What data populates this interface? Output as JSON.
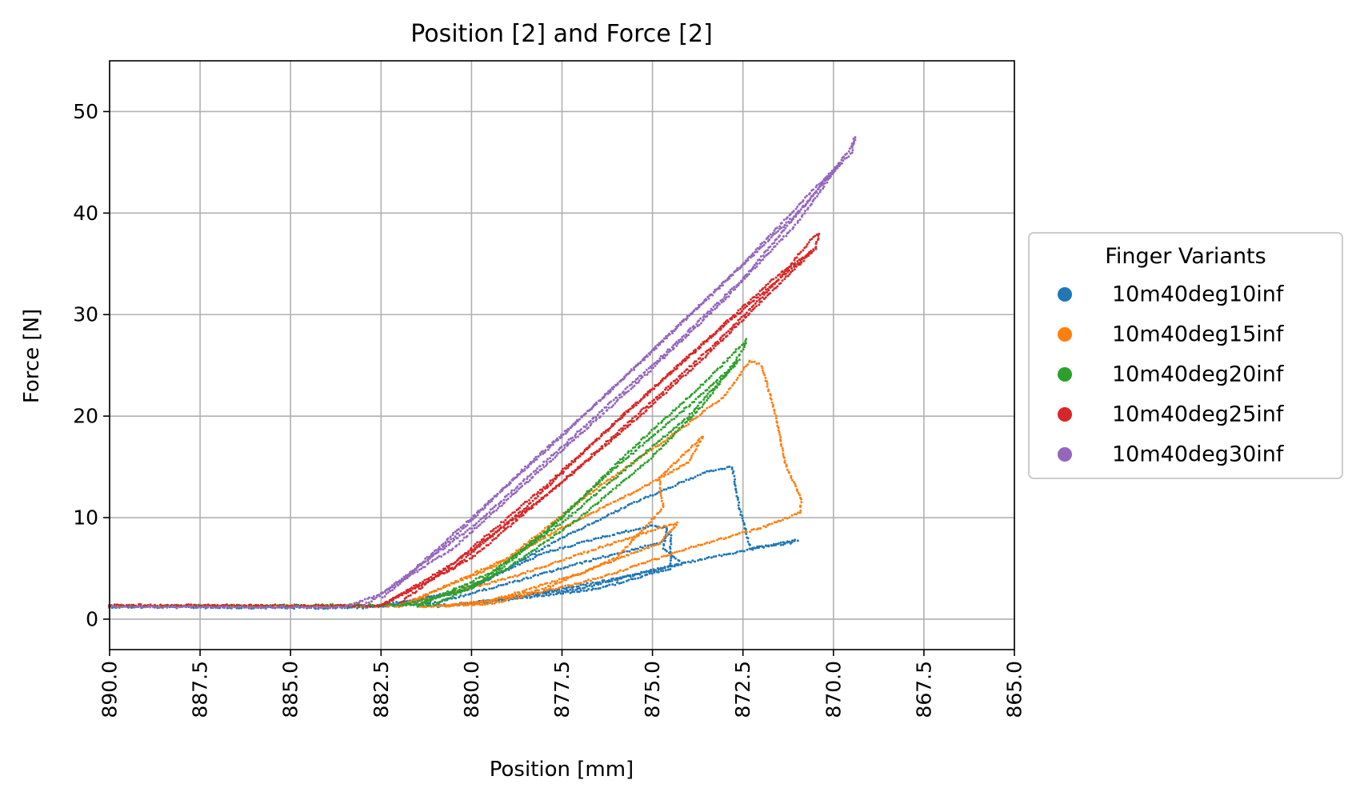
{
  "chart_data": {
    "type": "scatter",
    "title": "Position [2] and Force [2]",
    "xlabel": "Position [mm]",
    "ylabel": "Force [N]",
    "xlim": [
      890.0,
      865.0
    ],
    "ylim": [
      -3,
      55
    ],
    "x_ticks": [
      890.0,
      887.5,
      885.0,
      882.5,
      880.0,
      877.5,
      875.0,
      872.5,
      870.0,
      867.5,
      865.0
    ],
    "x_tick_labels": [
      "890.0",
      "887.5",
      "885.0",
      "882.5",
      "880.0",
      "877.5",
      "875.0",
      "872.5",
      "870.0",
      "867.5",
      "865.0"
    ],
    "y_ticks": [
      0,
      10,
      20,
      30,
      40,
      50
    ],
    "y_tick_labels": [
      "0",
      "10",
      "20",
      "30",
      "40",
      "50"
    ],
    "grid": true,
    "legend": {
      "title": "Finger Variants",
      "placement": "outside-right"
    },
    "series": [
      {
        "name": "10m40deg10inf",
        "color": "#1f77b4",
        "cycles": [
          {
            "load": [
              [
                890.0,
                1.2
              ],
              [
                883.5,
                1.1
              ],
              [
                881.0,
                1.6
              ],
              [
                879.0,
                3.5
              ],
              [
                876.5,
                6.0
              ],
              [
                874.8,
                7.5
              ],
              [
                874.5,
                8.5
              ]
            ],
            "unload": [
              [
                874.5,
                8.5
              ],
              [
                874.5,
                5.0
              ],
              [
                876.5,
                3.0
              ],
              [
                879.5,
                1.7
              ],
              [
                881.5,
                1.2
              ]
            ]
          },
          {
            "load": [
              [
                883.0,
                1.1
              ],
              [
                880.5,
                2.5
              ],
              [
                878.0,
                6.5
              ],
              [
                876.5,
                8.0
              ],
              [
                875.0,
                9.2
              ],
              [
                874.6,
                9.0
              ]
            ],
            "unload": [
              [
                874.6,
                9.0
              ],
              [
                874.7,
                7.0
              ],
              [
                874.2,
                5.5
              ],
              [
                877.0,
                3.0
              ],
              [
                880.0,
                1.6
              ]
            ]
          },
          {
            "load": [
              [
                882.5,
                1.2
              ],
              [
                880.0,
                3.0
              ],
              [
                877.5,
                8.0
              ],
              [
                875.5,
                11.5
              ],
              [
                874.5,
                13.0
              ],
              [
                873.5,
                14.5
              ],
              [
                872.8,
                15.0
              ]
            ],
            "unload": [
              [
                872.8,
                15.0
              ],
              [
                872.6,
                11.0
              ],
              [
                872.3,
                7.0
              ],
              [
                871.2,
                7.5
              ],
              [
                871.0,
                7.8
              ],
              [
                873.5,
                6.0
              ],
              [
                876.0,
                4.0
              ],
              [
                879.0,
                2.0
              ],
              [
                881.0,
                1.2
              ]
            ]
          }
        ]
      },
      {
        "name": "10m40deg15inf",
        "color": "#ff7f0e",
        "cycles": [
          {
            "load": [
              [
                890.0,
                1.3
              ],
              [
                882.0,
                1.3
              ],
              [
                879.0,
                4.0
              ],
              [
                876.5,
                7.0
              ],
              [
                874.8,
                9.0
              ],
              [
                874.3,
                9.5
              ]
            ],
            "unload": [
              [
                874.3,
                9.5
              ],
              [
                874.8,
                7.5
              ],
              [
                877.0,
                4.5
              ],
              [
                879.5,
                1.8
              ],
              [
                881.0,
                1.3
              ]
            ]
          },
          {
            "load": [
              [
                882.0,
                1.3
              ],
              [
                879.5,
                5.0
              ],
              [
                877.5,
                9.0
              ],
              [
                875.5,
                12.5
              ],
              [
                874.0,
                15.5
              ],
              [
                873.6,
                18.0
              ]
            ],
            "unload": [
              [
                873.6,
                18.0
              ],
              [
                874.8,
                14.0
              ],
              [
                874.8,
                13.0
              ],
              [
                874.7,
                11.0
              ],
              [
                876.0,
                6.0
              ],
              [
                878.0,
                3.0
              ],
              [
                880.0,
                1.4
              ]
            ]
          },
          {
            "load": [
              [
                882.0,
                1.2
              ],
              [
                879.0,
                6.0
              ],
              [
                876.5,
                13.0
              ],
              [
                874.5,
                18.0
              ],
              [
                873.0,
                22.0
              ],
              [
                872.3,
                25.5
              ],
              [
                872.0,
                25.0
              ],
              [
                871.9,
                24.0
              ]
            ],
            "unload": [
              [
                871.9,
                24.0
              ],
              [
                871.6,
                20.0
              ],
              [
                871.3,
                15.0
              ],
              [
                870.9,
                12.0
              ],
              [
                870.9,
                10.5
              ],
              [
                872.0,
                9.0
              ],
              [
                874.0,
                7.0
              ],
              [
                876.5,
                4.0
              ],
              [
                879.5,
                1.5
              ],
              [
                881.5,
                1.2
              ]
            ]
          }
        ]
      },
      {
        "name": "10m40deg20inf",
        "color": "#2ca02c",
        "cycles": [
          {
            "load": [
              [
                890.0,
                1.3
              ],
              [
                881.0,
                1.4
              ],
              [
                879.0,
                5.0
              ],
              [
                877.0,
                10.0
              ],
              [
                875.0,
                16.0
              ],
              [
                873.5,
                21.5
              ],
              [
                872.5,
                26.5
              ],
              [
                872.4,
                27.5
              ]
            ],
            "unload": [
              [
                872.4,
                27.5
              ],
              [
                873.5,
                23.5
              ],
              [
                875.5,
                17.0
              ],
              [
                877.5,
                10.0
              ],
              [
                879.5,
                4.0
              ],
              [
                881.5,
                1.4
              ]
            ]
          },
          {
            "load": [
              [
                881.5,
                1.3
              ],
              [
                879.5,
                4.5
              ],
              [
                877.5,
                9.5
              ],
              [
                875.5,
                15.5
              ],
              [
                874.0,
                20.0
              ],
              [
                872.6,
                25.5
              ]
            ],
            "unload": [
              [
                872.6,
                25.5
              ],
              [
                874.0,
                21.0
              ],
              [
                876.0,
                15.0
              ],
              [
                878.0,
                8.5
              ],
              [
                880.0,
                3.0
              ],
              [
                882.0,
                1.3
              ]
            ]
          }
        ]
      },
      {
        "name": "10m40deg25inf",
        "color": "#d62728",
        "cycles": [
          {
            "load": [
              [
                890.0,
                1.4
              ],
              [
                882.5,
                1.3
              ],
              [
                880.0,
                6.0
              ],
              [
                877.5,
                13.5
              ],
              [
                875.0,
                21.5
              ],
              [
                873.0,
                28.0
              ],
              [
                871.5,
                33.5
              ],
              [
                870.6,
                37.5
              ],
              [
                870.4,
                38.0
              ]
            ],
            "unload": [
              [
                870.4,
                38.0
              ],
              [
                870.5,
                36.5
              ],
              [
                871.5,
                34.0
              ],
              [
                873.5,
                27.5
              ],
              [
                876.0,
                19.5
              ],
              [
                878.5,
                11.0
              ],
              [
                880.5,
                5.0
              ],
              [
                882.5,
                1.4
              ]
            ]
          },
          {
            "load": [
              [
                882.5,
                1.3
              ],
              [
                880.5,
                5.5
              ],
              [
                878.0,
                12.0
              ],
              [
                875.5,
                19.5
              ],
              [
                873.5,
                26.0
              ],
              [
                871.5,
                33.0
              ],
              [
                870.5,
                36.5
              ]
            ],
            "unload": [
              [
                870.5,
                36.5
              ],
              [
                871.0,
                35.0
              ],
              [
                873.0,
                29.0
              ],
              [
                875.5,
                21.0
              ],
              [
                878.0,
                13.0
              ],
              [
                880.5,
                5.5
              ],
              [
                882.0,
                1.5
              ]
            ]
          }
        ]
      },
      {
        "name": "10m40deg30inf",
        "color": "#9467bd",
        "cycles": [
          {
            "load": [
              [
                890.0,
                1.2
              ],
              [
                883.5,
                1.2
              ],
              [
                882.5,
                2.5
              ],
              [
                880.0,
                9.0
              ],
              [
                877.5,
                17.0
              ],
              [
                875.0,
                25.0
              ],
              [
                872.5,
                33.5
              ],
              [
                870.5,
                42.0
              ],
              [
                869.5,
                46.5
              ],
              [
                869.4,
                47.5
              ]
            ],
            "unload": [
              [
                869.4,
                47.5
              ],
              [
                869.5,
                46.0
              ],
              [
                871.0,
                40.0
              ],
              [
                873.5,
                31.5
              ],
              [
                876.0,
                23.0
              ],
              [
                878.5,
                15.0
              ],
              [
                880.5,
                8.0
              ],
              [
                882.5,
                2.0
              ]
            ]
          },
          {
            "load": [
              [
                883.0,
                1.3
              ],
              [
                880.5,
                7.0
              ],
              [
                878.0,
                15.0
              ],
              [
                875.5,
                23.0
              ],
              [
                873.0,
                31.5
              ],
              [
                871.0,
                39.0
              ],
              [
                869.8,
                45.0
              ]
            ],
            "unload": [
              [
                869.8,
                45.0
              ],
              [
                870.5,
                42.5
              ],
              [
                872.5,
                35.0
              ],
              [
                875.0,
                26.5
              ],
              [
                877.5,
                18.0
              ],
              [
                880.0,
                10.0
              ],
              [
                882.0,
                3.5
              ]
            ]
          }
        ]
      }
    ]
  }
}
